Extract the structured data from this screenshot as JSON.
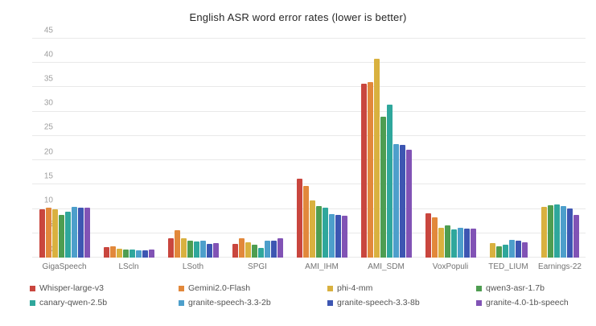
{
  "title": "English ASR word error rates (lower is better)",
  "chart_data": {
    "type": "bar",
    "title": "English ASR word error rates (lower is better)",
    "xlabel": "",
    "ylabel": "",
    "ylim": [
      0,
      45
    ],
    "yticks": [
      0,
      5,
      10,
      15,
      20,
      25,
      30,
      35,
      40,
      45
    ],
    "grid": true,
    "legend_position": "bottom",
    "categories": [
      "GigaSpeech",
      "LScln",
      "LSoth",
      "SPGI",
      "AMI_IHM",
      "AMI_SDM",
      "VoxPopuli",
      "TED_LIUM",
      "Earnings-22"
    ],
    "series": [
      {
        "name": "Whisper-large-v3",
        "color": "#c9463e",
        "values": [
          9.9,
          2.1,
          4.0,
          2.8,
          16.2,
          35.8,
          9.1,
          null,
          null
        ]
      },
      {
        "name": "Gemini2.0-Flash",
        "color": "#e2883b",
        "values": [
          10.3,
          2.4,
          5.6,
          4.0,
          14.8,
          36.0,
          8.2,
          null,
          null
        ]
      },
      {
        "name": "phi-4-mm",
        "color": "#d9b13f",
        "values": [
          9.9,
          1.8,
          3.9,
          3.2,
          11.7,
          40.8,
          6.1,
          3.0,
          10.4
        ]
      },
      {
        "name": "qwen3-asr-1.7b",
        "color": "#4e9d51",
        "values": [
          8.7,
          1.7,
          3.4,
          2.6,
          10.6,
          28.9,
          6.7,
          2.3,
          10.7
        ]
      },
      {
        "name": "canary-qwen-2.5b",
        "color": "#2fa79c",
        "values": [
          9.4,
          1.7,
          3.3,
          2.0,
          10.2,
          31.4,
          5.8,
          2.7,
          11.0
        ]
      },
      {
        "name": "granite-speech-3.3-2b",
        "color": "#4d9fcb",
        "values": [
          10.5,
          1.5,
          3.5,
          3.5,
          9.0,
          23.3,
          6.2,
          3.6,
          10.6
        ]
      },
      {
        "name": "granite-speech-3.3-8b",
        "color": "#3d56b2",
        "values": [
          10.3,
          1.5,
          2.8,
          3.5,
          8.8,
          23.2,
          5.9,
          3.5,
          10.1
        ]
      },
      {
        "name": "granite-4.0-1b-speech",
        "color": "#8153b5",
        "values": [
          10.2,
          1.7,
          3.0,
          3.9,
          8.6,
          22.2,
          6.0,
          3.1,
          8.7
        ]
      }
    ]
  }
}
